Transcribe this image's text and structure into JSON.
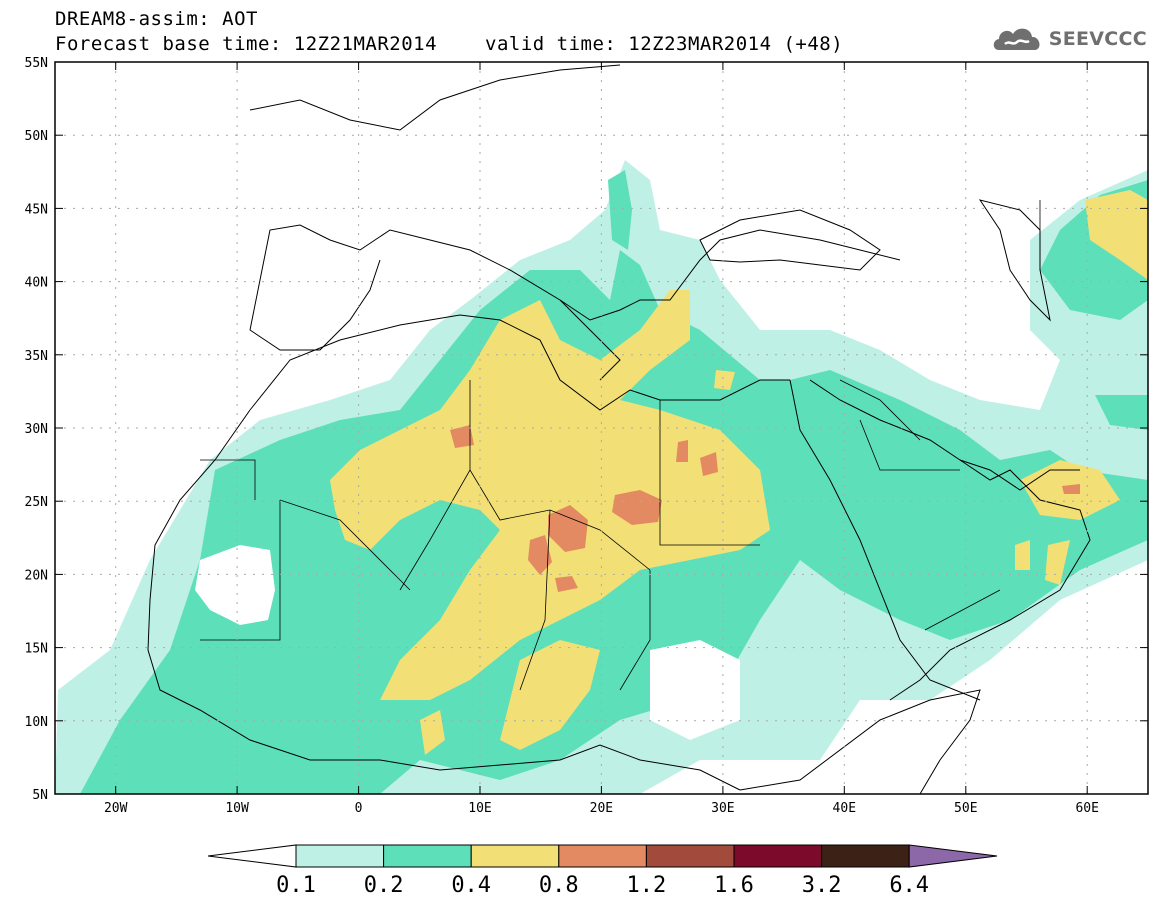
{
  "header": {
    "title_line1": "DREAM8-assim: AOT",
    "title_line2": "Forecast base time: 12Z21MAR2014",
    "valid_time": "valid time: 12Z23MAR2014 (+48)",
    "logo_text": "SEEVCCC",
    "logo_icon": "cloud-icon"
  },
  "map": {
    "lat_labels": [
      "55N",
      "50N",
      "45N",
      "40N",
      "35N",
      "30N",
      "25N",
      "20N",
      "15N",
      "10N",
      "5N"
    ],
    "lon_labels": [
      "20W",
      "10W",
      "0",
      "10E",
      "20E",
      "30E",
      "40E",
      "50E",
      "60E"
    ],
    "lat_range": [
      5,
      55
    ],
    "lon_range": [
      -25,
      65
    ],
    "gridlines": "dotted"
  },
  "colorbar": {
    "labels": [
      "0.1",
      "0.2",
      "0.4",
      "0.8",
      "1.2",
      "1.6",
      "3.2",
      "6.4"
    ],
    "colors": [
      "#ffffff",
      "#bff0e6",
      "#5ddfb9",
      "#f2e076",
      "#e38a62",
      "#a24a3c",
      "#7c0a2a",
      "#3b2116",
      "#8c68a8"
    ]
  }
}
